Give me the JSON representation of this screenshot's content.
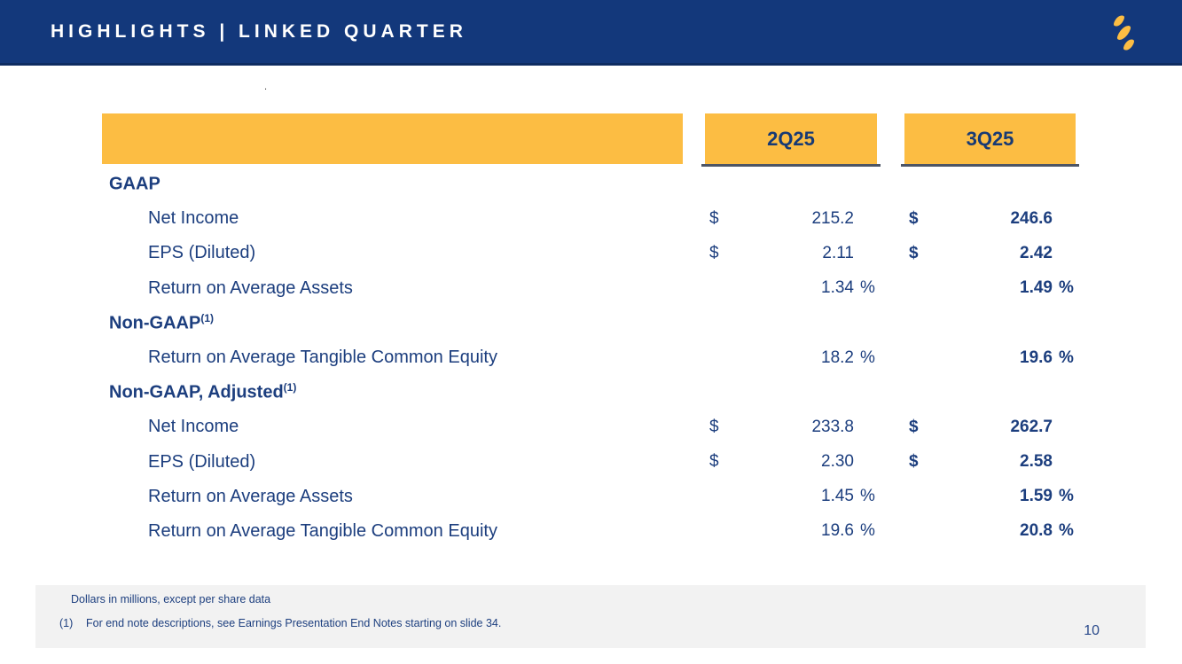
{
  "slide": {
    "title": "HIGHLIGHTS | LINKED QUARTER",
    "page_number": "10",
    "stray_dot": "."
  },
  "logo": {
    "name": "gold-s-logo"
  },
  "table": {
    "columns": [
      "2Q25",
      "3Q25"
    ],
    "sections": [
      {
        "label": "GAAP",
        "sup": "",
        "rows": [
          {
            "label": "Net Income",
            "currency": "$",
            "suffix": "",
            "values": [
              "215.2",
              "246.6"
            ]
          },
          {
            "label": "EPS (Diluted)",
            "currency": "$",
            "suffix": "",
            "values": [
              "2.11",
              "2.42"
            ]
          },
          {
            "label": "Return on Average Assets",
            "currency": "",
            "suffix": "%",
            "values": [
              "1.34",
              "1.49"
            ]
          }
        ]
      },
      {
        "label": "Non-GAAP",
        "sup": "(1)",
        "rows": [
          {
            "label": "Return on Average Tangible Common Equity",
            "currency": "",
            "suffix": "%",
            "values": [
              "18.2",
              "19.6"
            ]
          }
        ]
      },
      {
        "label": "Non-GAAP, Adjusted",
        "sup": "(1)",
        "rows": [
          {
            "label": "Net Income",
            "currency": "$",
            "suffix": "",
            "values": [
              "233.8",
              "262.7"
            ]
          },
          {
            "label": "EPS (Diluted)",
            "currency": "$",
            "suffix": "",
            "values": [
              "2.30",
              "2.58"
            ]
          },
          {
            "label": "Return on Average Assets",
            "currency": "",
            "suffix": "%",
            "values": [
              "1.45",
              "1.59"
            ]
          },
          {
            "label": "Return on Average Tangible Common Equity",
            "currency": "",
            "suffix": "%",
            "values": [
              "19.6",
              "20.8"
            ]
          }
        ]
      }
    ]
  },
  "footnotes": {
    "line1": "Dollars in millions, except per share data",
    "line2_marker": "(1)",
    "line2": "For end note descriptions, see Earnings Presentation End Notes starting on slide 34."
  },
  "colors": {
    "navy": "#13387B",
    "gold": "#FCBD43",
    "text_navy": "#1C3E7E",
    "header_underline": "#4C5565",
    "footer_bg": "#F2F2F2"
  }
}
